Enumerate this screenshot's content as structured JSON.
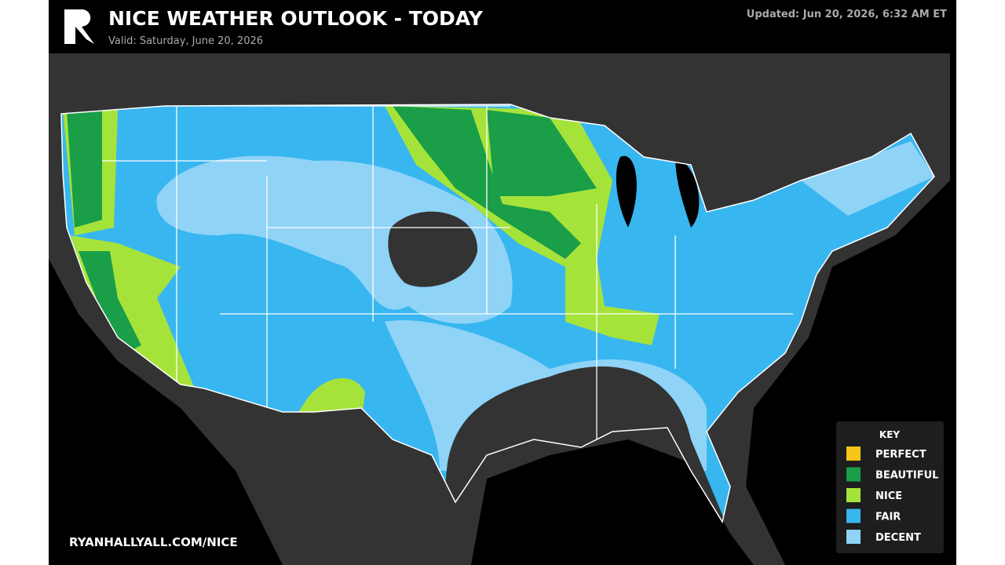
{
  "header": {
    "title": "NICE WEATHER OUTLOOK - TODAY",
    "valid": "Valid: Saturday, June 20, 2026",
    "updated": "Updated: Jun 20, 2026, 6:32 AM ET"
  },
  "key": {
    "title": "KEY",
    "items": [
      {
        "label": "PERFECT",
        "color": "#f5c518"
      },
      {
        "label": "BEAUTIFUL",
        "color": "#1a9e48"
      },
      {
        "label": "NICE",
        "color": "#a6e33a"
      },
      {
        "label": "FAIR",
        "color": "#38b6f0"
      },
      {
        "label": "DECENT",
        "color": "#8fd3f7"
      }
    ]
  },
  "footer": {
    "url": "RYANHALLYALL.COM/NICE"
  }
}
